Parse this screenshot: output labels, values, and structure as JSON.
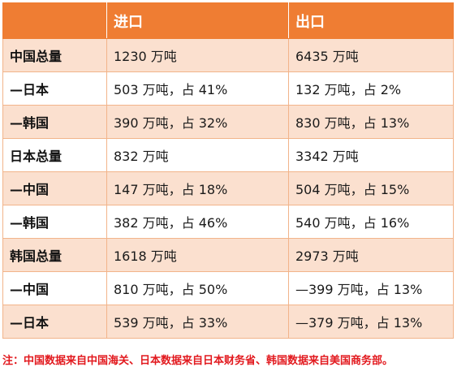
{
  "table": {
    "headers": [
      "",
      "进口",
      "出口"
    ],
    "rows": [
      {
        "label": "中国总量",
        "import": "1230 万吨",
        "export": "6435 万吨",
        "shade": true
      },
      {
        "label": "—日本",
        "import": "503 万吨，占 41%",
        "export": "132 万吨，占 2%",
        "shade": false
      },
      {
        "label": "—韩国",
        "import": "390 万吨，占 32%",
        "export": "830 万吨，占 13%",
        "shade": true
      },
      {
        "label": "日本总量",
        "import": "832 万吨",
        "export": "3342 万吨",
        "shade": false
      },
      {
        "label": "—中国",
        "import": "147 万吨，占 18%",
        "export": "504 万吨，占 15%",
        "shade": true
      },
      {
        "label": "—韩国",
        "import": "382 万吨，占 46%",
        "export": "540 万吨，占 16%",
        "shade": false
      },
      {
        "label": "韩国总量",
        "import": "1618 万吨",
        "export": "2973 万吨",
        "shade": true
      },
      {
        "label": "—中国",
        "import": "810 万吨，占 50%",
        "export": "—399 万吨，占 13%",
        "shade": false
      },
      {
        "label": "—日本",
        "import": "539 万吨，占 33%",
        "export": "—379 万吨，占 13%",
        "shade": true
      }
    ]
  },
  "note": "注：中国数据来自中国海关、日本数据来自日本财务省、韩国数据来自美国商务部。",
  "colors": {
    "header_bg": "#ef7d33",
    "row_shade": "#fbe0cf",
    "note_text": "#e2191e"
  }
}
